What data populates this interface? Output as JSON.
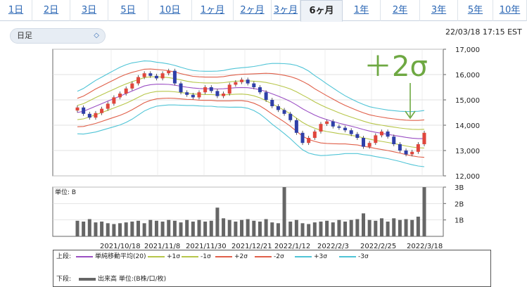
{
  "tabs": [
    {
      "label": "1日",
      "active": false
    },
    {
      "label": "2日",
      "active": false
    },
    {
      "label": "3日",
      "active": false
    },
    {
      "label": "5日",
      "active": false
    },
    {
      "label": "10日",
      "active": false
    },
    {
      "label": "1ヶ月",
      "active": false
    },
    {
      "label": "2ヶ月",
      "active": false
    },
    {
      "label": "3ヶ月",
      "active": false
    },
    {
      "label": "6ヶ月",
      "active": true
    },
    {
      "label": "1年",
      "active": false
    },
    {
      "label": "2年",
      "active": false
    },
    {
      "label": "3年",
      "active": false
    },
    {
      "label": "5年",
      "active": false
    },
    {
      "label": "10年",
      "active": false
    }
  ],
  "selector": {
    "value": "日足"
  },
  "timestamp": "22/03/18 17:15 EST",
  "annotation": "＋2σ",
  "price_axis": [
    "17,000",
    "16,000",
    "15,000",
    "14,000",
    "13,000",
    "12,000"
  ],
  "volume_axis": {
    "unit_label": "単位: B",
    "ticks": [
      "3B",
      "2B",
      "1B"
    ]
  },
  "x_axis_labels": [
    "2021/10/18",
    "2021/11/8",
    "2021/11/30",
    "2021/12/21",
    "2022/1/12",
    "2022/2/3",
    "2022/2/25",
    "2022/3/18"
  ],
  "legend": {
    "upper_label": "上段:",
    "lower_label": "下段:",
    "items": [
      {
        "label": "単純移動平均(20)",
        "color": "#9b4fc4"
      },
      {
        "label": "+1σ",
        "color": "#b7c64a"
      },
      {
        "label": "-1σ",
        "color": "#b7c64a"
      },
      {
        "label": "+2σ",
        "color": "#e0604a"
      },
      {
        "label": "-2σ",
        "color": "#e0604a"
      },
      {
        "label": "+3σ",
        "color": "#4fc4d6"
      },
      {
        "label": "-3σ",
        "color": "#4fc4d6"
      }
    ],
    "volume_item": "出来高 単位:(B株/口/枚)"
  },
  "colors": {
    "up_candle": "#e0463c",
    "down_candle": "#2f3fa8",
    "volume_bar": "#666666",
    "annotation": "#6ea842"
  },
  "chart_data": {
    "type": "candlestick",
    "y_range": [
      12000,
      17000
    ],
    "volume_range_B": [
      0,
      3
    ],
    "close": [
      14700,
      14450,
      14300,
      14480,
      14650,
      14850,
      15100,
      15250,
      15450,
      15650,
      15900,
      16050,
      15950,
      15850,
      16050,
      16150,
      15650,
      15300,
      15200,
      15100,
      15300,
      15500,
      15350,
      15150,
      15250,
      15600,
      15700,
      15800,
      15650,
      15500,
      15300,
      15000,
      14750,
      14600,
      14450,
      14200,
      13700,
      13300,
      13500,
      13750,
      14050,
      14150,
      13950,
      13900,
      13800,
      13650,
      13500,
      13150,
      13300,
      13600,
      13750,
      13550,
      13250,
      13000,
      12850,
      12950,
      13250,
      13700
    ],
    "sma20": [
      14500,
      14550,
      14650,
      14750,
      14850,
      14950,
      15050,
      15150,
      15250,
      15350,
      15450,
      15550,
      15600,
      15620,
      15620,
      15610,
      15580,
      15540,
      15500,
      15470,
      15450,
      15440,
      15440,
      15430,
      15440,
      15460,
      15480,
      15490,
      15480,
      15450,
      15400,
      15330,
      15240,
      15150,
      15050,
      14940,
      14800,
      14650,
      14520,
      14400,
      14300,
      14220,
      14150,
      14080,
      14020,
      13960,
      13900,
      13830,
      13770,
      13720,
      13680,
      13640,
      13600,
      13560,
      13520,
      13490,
      13470,
      13470
    ],
    "sigma": [
      280,
      300,
      320,
      340,
      350,
      360,
      370,
      380,
      380,
      370,
      350,
      330,
      310,
      290,
      280,
      270,
      260,
      250,
      240,
      230,
      230,
      230,
      230,
      235,
      240,
      250,
      255,
      260,
      270,
      290,
      320,
      360,
      400,
      430,
      460,
      490,
      520,
      540,
      540,
      520,
      500,
      470,
      440,
      410,
      380,
      360,
      340,
      330,
      320,
      320,
      320,
      320,
      325,
      330,
      340,
      350,
      360,
      370
    ],
    "volume_B": [
      0.95,
      0.9,
      1.05,
      0.85,
      0.9,
      0.8,
      0.75,
      0.8,
      0.85,
      0.9,
      0.95,
      0.8,
      1.0,
      0.95,
      0.9,
      1.0,
      0.95,
      0.85,
      1.0,
      0.9,
      1.0,
      0.9,
      0.95,
      1.75,
      1.1,
      1.0,
      0.9,
      1.0,
      1.05,
      0.95,
      0.9,
      1.05,
      0.85,
      0.8,
      3.0,
      0.9,
      1.0,
      0.8,
      0.75,
      0.85,
      0.9,
      0.95,
      0.85,
      1.0,
      0.9,
      1.0,
      1.05,
      1.4,
      1.0,
      0.95,
      1.1,
      0.9,
      1.1,
      1.0,
      1.05,
      1.0,
      1.2,
      3.0
    ]
  }
}
